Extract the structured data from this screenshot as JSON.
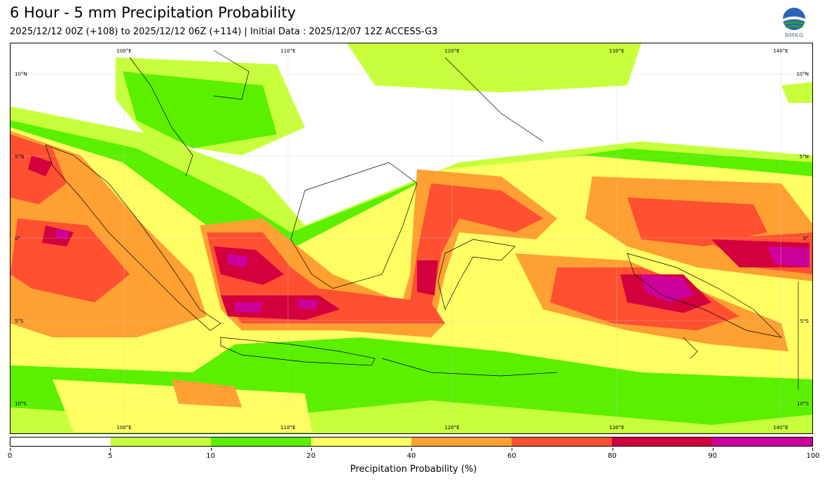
{
  "title": "6 Hour - 5 mm Precipitation Probability",
  "subtitle": "2025/12/12 00Z (+108) to 2025/12/12 06Z (+114) | Initial Data : 2025/12/07 12Z ACCESS-G3",
  "logo_text": "BMKG",
  "map": {
    "lon_labels": [
      "100°E",
      "110°E",
      "120°E",
      "130°E",
      "140°E"
    ],
    "lat_labels": [
      "10°N",
      "5°N",
      "0°",
      "5°S",
      "10°S"
    ]
  },
  "colorbar": {
    "label": "Precipitation Probability (%)",
    "ticks": [
      "0",
      "5",
      "10",
      "20",
      "40",
      "60",
      "80",
      "90",
      "100"
    ],
    "colors": [
      "#ffffff",
      "#c8ff3c",
      "#5af000",
      "#ffff64",
      "#ffa032",
      "#ff5032",
      "#d2003c",
      "#cd009b"
    ]
  }
}
